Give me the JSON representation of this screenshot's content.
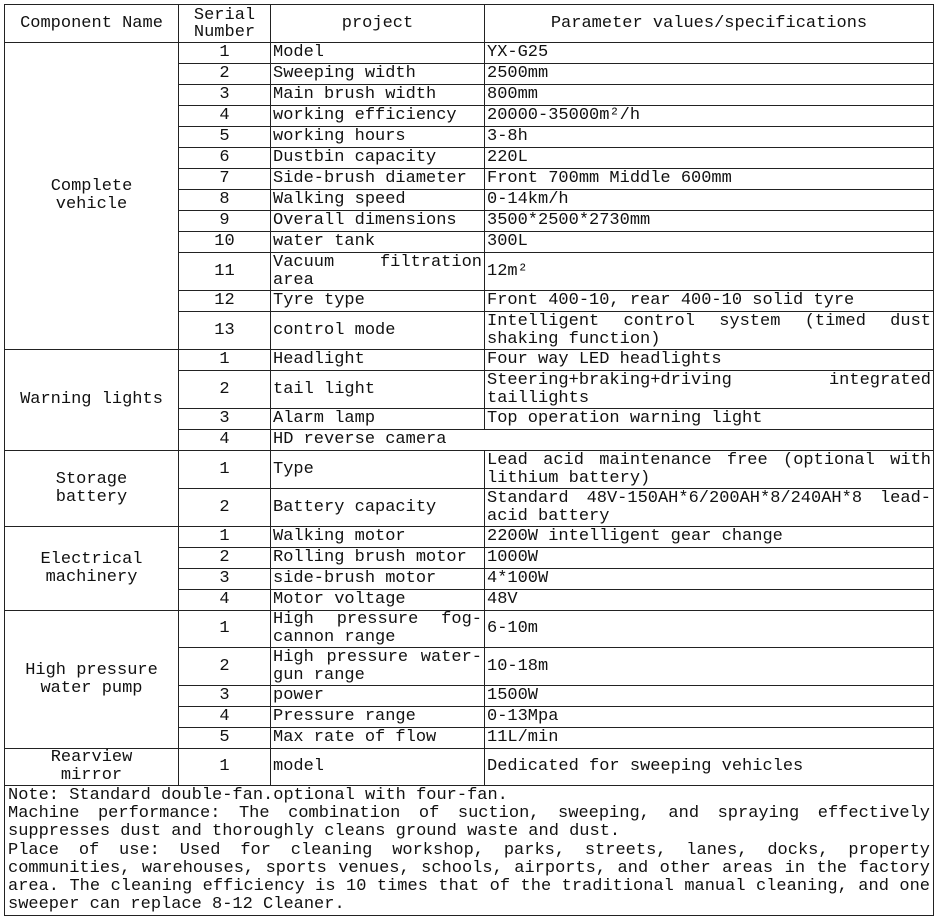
{
  "header": {
    "component": "Component Name",
    "serial": "Serial Number",
    "project": "project",
    "params": "Parameter values/specifications"
  },
  "groups": [
    {
      "name": "Complete vehicle",
      "rows": [
        {
          "n": "1",
          "project": "Model",
          "value": "YX-G25"
        },
        {
          "n": "2",
          "project": "Sweeping width",
          "value": "2500mm"
        },
        {
          "n": "3",
          "project": "Main brush width",
          "value": "800mm"
        },
        {
          "n": "4",
          "project": "working efficiency",
          "value": "20000-35000m²/h"
        },
        {
          "n": "5",
          "project": "working hours",
          "value": "3-8h"
        },
        {
          "n": "6",
          "project": "Dustbin capacity",
          "value": "220L"
        },
        {
          "n": "7",
          "project": "Side-brush diameter",
          "value": "Front 700mm  Middle 600mm"
        },
        {
          "n": "8",
          "project": "Walking speed",
          "value": "0-14km/h"
        },
        {
          "n": "9",
          "project": "Overall dimensions",
          "value": "3500*2500*2730mm"
        },
        {
          "n": "10",
          "project": "water tank",
          "value": "300L"
        },
        {
          "n": "11",
          "project": "Vacuum filtration area",
          "value": "12m²"
        },
        {
          "n": "12",
          "project": "Tyre type",
          "value": "Front 400-10, rear 400-10 solid tyre"
        },
        {
          "n": "13",
          "project": "control mode",
          "value": "Intelligent control system (timed dust shaking function)"
        }
      ]
    },
    {
      "name": "Warning lights",
      "rows": [
        {
          "n": "1",
          "project": "Headlight",
          "value": "Four way LED headlights"
        },
        {
          "n": "2",
          "project": "tail light",
          "value": "Steering+braking+driving integrated taillights"
        },
        {
          "n": "3",
          "project": "Alarm lamp",
          "value": "Top operation warning light"
        },
        {
          "n": "4",
          "project": "HD reverse camera",
          "value": ""
        }
      ]
    },
    {
      "name": "Storage battery",
      "rows": [
        {
          "n": "1",
          "project": "Type",
          "value": "Lead acid maintenance free (optional with lithium battery)"
        },
        {
          "n": "2",
          "project": "Battery capacity",
          "value": "Standard 48V-150AH*6/200AH*8/240AH*8 lead-acid battery"
        }
      ]
    },
    {
      "name": "Electrical machinery",
      "rows": [
        {
          "n": "1",
          "project": "Walking motor",
          "value": "2200W intelligent gear change"
        },
        {
          "n": "2",
          "project": "Rolling brush motor",
          "value": "1000W"
        },
        {
          "n": "3",
          "project": "side-brush motor",
          "value": "4*100W"
        },
        {
          "n": "4",
          "project": "Motor voltage",
          "value": "48V"
        }
      ]
    },
    {
      "name": "High pressure water pump",
      "rows": [
        {
          "n": "1",
          "project": "High pressure fog-cannon range",
          "value": "6-10m"
        },
        {
          "n": "2",
          "project": "High pressure water-gun range",
          "value": "10-18m"
        },
        {
          "n": "3",
          "project": "power",
          "value": "1500W"
        },
        {
          "n": "4",
          "project": "Pressure range",
          "value": "0-13Mpa"
        },
        {
          "n": "5",
          "project": "Max rate of flow",
          "value": "11L/min"
        }
      ]
    },
    {
      "name": "Rearview mirror",
      "rows": [
        {
          "n": "1",
          "project": "model",
          "value": "Dedicated for sweeping vehicles"
        }
      ]
    }
  ],
  "notes": [
    "Note: Standard  double-fan.optional with four-fan.",
    "Machine performance: The combination of suction, sweeping, and spraying effectively suppresses dust and thoroughly cleans ground waste and dust.",
    "Place of use: Used for cleaning workshop, parks, streets, lanes, docks, property communities, warehouses, sports venues, schools, airports, and other areas in the factory area. The cleaning efficiency is 10 times that of the traditional manual cleaning, and one sweeper can replace 8-12 Cleaner."
  ]
}
